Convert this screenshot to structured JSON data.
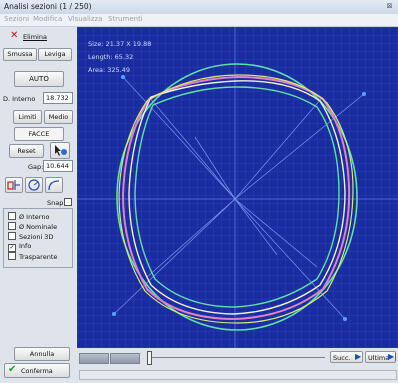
{
  "window": {
    "title": "Analisi sezioni (1 / 250)"
  },
  "menu": [
    "Sezioni",
    "Modifica",
    "Visualizza",
    "Strumenti"
  ],
  "left": {
    "elimina": "Elimina",
    "smussa": "Smussa",
    "leviga": "Leviga",
    "auto": "AUTO",
    "d_interno_label": "D. Interno",
    "d_interno_value": "18.732",
    "limiti": "Limiti",
    "medio": "Medio",
    "facce": "FACCE",
    "reset": "Reset",
    "gap_label": "Gap:",
    "gap_value": "10.644",
    "snap": "Snap",
    "checks": [
      {
        "label": "Ø Interno",
        "checked": false
      },
      {
        "label": "Ø Nominale",
        "checked": false
      },
      {
        "label": "Sezioni 3D",
        "checked": false
      },
      {
        "label": "Info",
        "checked": true
      },
      {
        "label": "Trasparente",
        "checked": false
      }
    ],
    "annulla": "Annulla",
    "conferma": "Conferma"
  },
  "overlay": {
    "size": "Size: 21.37 X 19.88",
    "length": "Length: 65.32",
    "area": "Area: 325.49"
  },
  "bottom": {
    "succ": "Succ.",
    "ultima": "Ultima"
  },
  "colors": {
    "plot_bg": "#1a2da0",
    "contour_green": "#5fe0a8",
    "contour_pink": "#e080c8",
    "contour_white": "#f0f0e0",
    "contour_yellow": "#d8e870"
  }
}
